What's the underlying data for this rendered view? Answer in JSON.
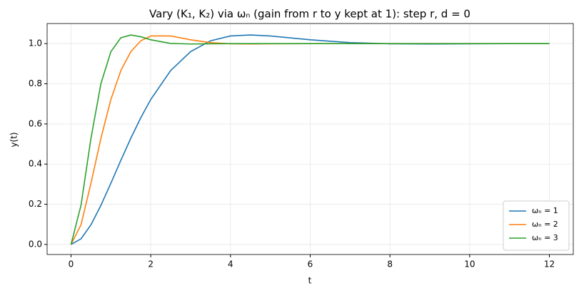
{
  "chart_data": {
    "type": "line",
    "title": "Vary (K₁, K₂) via ωₙ (gain from r to y kept at 1): step r, d = 0",
    "x_label": "t",
    "y_label": "y(t)",
    "x": [
      0,
      0.25,
      0.5,
      0.75,
      1,
      1.25,
      1.5,
      1.75,
      2,
      2.5,
      3,
      3.5,
      4,
      4.5,
      5,
      6,
      7,
      8,
      9,
      10,
      11,
      12
    ],
    "series": [
      {
        "name": "ωₙ = 1",
        "color": "#1f77b4",
        "values": [
          0,
          0.028,
          0.098,
          0.195,
          0.305,
          0.419,
          0.529,
          0.631,
          0.722,
          0.866,
          0.96,
          1.014,
          1.038,
          1.043,
          1.038,
          1.019,
          1.005,
          0.999,
          0.998,
          0.999,
          1.0,
          1.0
        ]
      },
      {
        "name": "ωₙ = 2",
        "color": "#ff7f0e",
        "values": [
          0,
          0.098,
          0.305,
          0.529,
          0.722,
          0.866,
          0.96,
          1.014,
          1.038,
          1.038,
          1.019,
          1.005,
          0.999,
          0.998,
          0.999,
          1.0,
          1.0,
          1.0,
          1.0,
          1.0,
          1.0,
          1.0
        ]
      },
      {
        "name": "ωₙ = 3",
        "color": "#2ca02c",
        "values": [
          0,
          0.195,
          0.529,
          0.801,
          0.96,
          1.029,
          1.043,
          1.034,
          1.019,
          1.001,
          0.998,
          0.999,
          1.0,
          1.0,
          1.0,
          1.0,
          1.0,
          1.0,
          1.0,
          1.0,
          1.0,
          1.0
        ]
      }
    ],
    "xlim": [
      -0.6,
      12.6
    ],
    "ylim": [
      -0.05,
      1.1
    ],
    "xticks": [
      0,
      2,
      4,
      6,
      8,
      10,
      12
    ],
    "yticks": [
      {
        "value": 0,
        "label": "0.0"
      },
      {
        "value": 0.2,
        "label": "0.2"
      },
      {
        "value": 0.4,
        "label": "0.4"
      },
      {
        "value": 0.6,
        "label": "0.6"
      },
      {
        "value": 0.8,
        "label": "0.8"
      },
      {
        "value": 1,
        "label": "1.0"
      }
    ],
    "grid": true,
    "legend": "lower right"
  }
}
